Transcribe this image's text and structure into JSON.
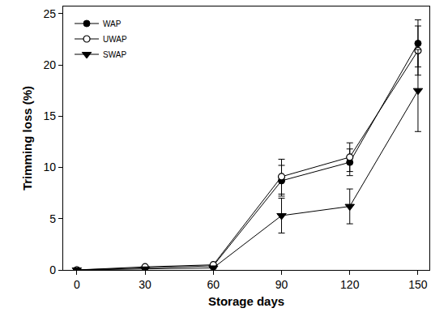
{
  "chart_data": {
    "type": "line",
    "x_label": "Storage days",
    "y_label": "Trimming loss (%)",
    "x": [
      0,
      30,
      60,
      90,
      120,
      150
    ],
    "series": [
      {
        "name": "WAP",
        "color": "#000000",
        "marker": "circle",
        "line_style": "solid",
        "values": [
          0,
          0.2,
          0.4,
          8.7,
          10.5,
          22.1
        ],
        "error": [
          0,
          0.1,
          0.1,
          1.5,
          1.3,
          2.3
        ]
      },
      {
        "name": "UWAP",
        "color": "#000000",
        "marker": "open_circle",
        "line_style": "solid",
        "values": [
          0,
          0.3,
          0.5,
          9.1,
          11.0,
          21.4
        ],
        "error": [
          0,
          0.1,
          0.1,
          1.7,
          1.4,
          2.4
        ]
      },
      {
        "name": "SWAP",
        "color": "#000000",
        "marker": "triangle_down",
        "line_style": "solid",
        "values": [
          0,
          0.1,
          0.2,
          5.3,
          6.2,
          17.5
        ],
        "error": [
          0,
          0.1,
          0.1,
          1.7,
          1.7,
          4.0
        ]
      }
    ],
    "xlim": [
      -6,
      155
    ],
    "xticks": [
      0,
      30,
      60,
      90,
      120,
      150
    ],
    "ylim": [
      0,
      25.7
    ],
    "yticks": [
      0,
      5,
      10,
      15,
      20,
      25
    ],
    "grid": false,
    "legend": "upper left"
  }
}
